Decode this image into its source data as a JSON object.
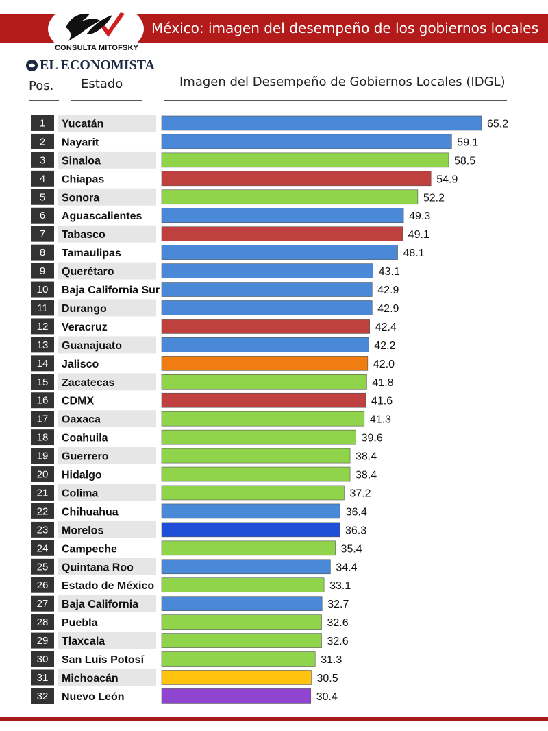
{
  "header": {
    "banner_title": "México: imagen del desempeño de los gobiernos locales",
    "logo_text": "CONSULTA MITOFSKY",
    "publisher": "EL ECONOMISTA",
    "col_pos": "Pos.",
    "col_state": "Estado",
    "col_chart": "Imagen del Desempeño de Gobiernos Locales (IDGL)"
  },
  "colors": {
    "banner": "#b31b1b",
    "pos_box": "#333333",
    "row_stripe": "#e6e6e6",
    "blue": "#4a88d8",
    "green": "#8fd44a",
    "red": "#c0403f",
    "orange": "#f07d12",
    "dark_blue": "#1f4fd9",
    "yellow": "#ffc20e",
    "purple": "#8f45cf"
  },
  "chart_data": {
    "type": "bar",
    "orientation": "horizontal",
    "title": "Imagen del Desempeño de Gobiernos Locales (IDGL)",
    "positions": [
      1,
      2,
      3,
      4,
      5,
      6,
      7,
      8,
      9,
      10,
      11,
      12,
      13,
      14,
      15,
      16,
      17,
      18,
      19,
      20,
      21,
      22,
      23,
      24,
      25,
      26,
      27,
      28,
      29,
      30,
      31,
      32
    ],
    "categories": [
      "Yucatán",
      "Nayarit",
      "Sinaloa",
      "Chiapas",
      "Sonora",
      "Aguascalientes",
      "Tabasco",
      "Tamaulipas",
      "Querétaro",
      "Baja California Sur",
      "Durango",
      "Veracruz",
      "Guanajuato",
      "Jalisco",
      "Zacatecas",
      "CDMX",
      "Oaxaca",
      "Coahuila",
      "Guerrero",
      "Hidalgo",
      "Colima",
      "Chihuahua",
      "Morelos",
      "Campeche",
      "Quintana Roo",
      "Estado de México",
      "Baja California",
      "Puebla",
      "Tlaxcala",
      "San Luis Potosí",
      "Michoacán",
      "Nuevo León"
    ],
    "values": [
      65.2,
      59.1,
      58.5,
      54.9,
      52.2,
      49.3,
      49.1,
      48.1,
      43.1,
      42.9,
      42.9,
      42.4,
      42.2,
      42.0,
      41.8,
      41.6,
      41.3,
      39.6,
      38.4,
      38.4,
      37.2,
      36.4,
      36.3,
      35.4,
      34.4,
      33.1,
      32.7,
      32.6,
      32.6,
      31.3,
      30.5,
      30.4
    ],
    "value_labels": [
      "65.2",
      "59.1",
      "58.5",
      "54.9",
      "52.2",
      "49.3",
      "49.1",
      "48.1",
      "43.1",
      "42.9",
      "42.9",
      "42.4",
      "42.2",
      "42.0",
      "41.8",
      "41.6",
      "41.3",
      "39.6",
      "38.4",
      "38.4",
      "37.2",
      "36.4",
      "36.3",
      "35.4",
      "34.4",
      "33.1",
      "32.7",
      "32.6",
      "32.6",
      "31.3",
      "30.5",
      "30.4"
    ],
    "bar_colors": [
      "#4a88d8",
      "#4a88d8",
      "#8fd44a",
      "#c0403f",
      "#8fd44a",
      "#4a88d8",
      "#c0403f",
      "#4a88d8",
      "#4a88d8",
      "#4a88d8",
      "#4a88d8",
      "#c0403f",
      "#4a88d8",
      "#f07d12",
      "#8fd44a",
      "#c0403f",
      "#8fd44a",
      "#8fd44a",
      "#8fd44a",
      "#8fd44a",
      "#8fd44a",
      "#4a88d8",
      "#1f4fd9",
      "#8fd44a",
      "#4a88d8",
      "#8fd44a",
      "#4a88d8",
      "#8fd44a",
      "#8fd44a",
      "#8fd44a",
      "#ffc20e",
      "#8f45cf"
    ],
    "grid": false,
    "legend": "none"
  }
}
